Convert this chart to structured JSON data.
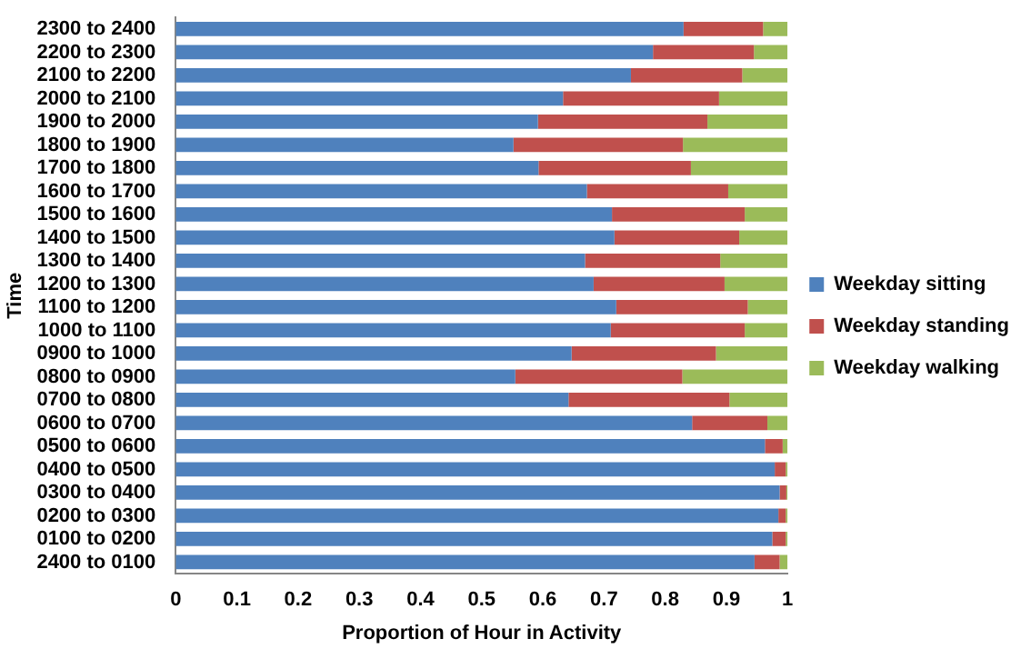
{
  "chart_data": {
    "type": "bar",
    "orientation": "horizontal",
    "stacked": true,
    "xlabel": "Proportion of Hour in Activity",
    "ylabel": "Time",
    "categories": [
      "2300 to 2400",
      "2200 to 2300",
      "2100 to 2200",
      "2000 to 2100",
      "1900 to 2000",
      "1800 to 1900",
      "1700 to 1800",
      "1600 to 1700",
      "1500 to 1600",
      "1400 to 1500",
      "1300 to 1400",
      "1200 to 1300",
      "1100 to 1200",
      "1000 to 1100",
      "0900 to 1000",
      "0800 to 0900",
      "0700 to 0800",
      "0600 to 0700",
      "0500 to 0600",
      "0400 to 0500",
      "0300 to 0400",
      "0200 to 0300",
      "0100 to 0200",
      "2400 to 0100"
    ],
    "series": [
      {
        "name": "Weekday sitting",
        "color": "#4f81bd",
        "values": [
          0.83,
          0.78,
          0.744,
          0.633,
          0.592,
          0.552,
          0.593,
          0.672,
          0.713,
          0.717,
          0.669,
          0.683,
          0.72,
          0.711,
          0.647,
          0.555,
          0.642,
          0.844,
          0.963,
          0.979,
          0.987,
          0.985,
          0.975,
          0.946
        ]
      },
      {
        "name": "Weekday standing",
        "color": "#c0504d",
        "values": [
          0.13,
          0.165,
          0.182,
          0.255,
          0.277,
          0.277,
          0.249,
          0.231,
          0.217,
          0.204,
          0.221,
          0.214,
          0.215,
          0.219,
          0.236,
          0.273,
          0.263,
          0.123,
          0.029,
          0.018,
          0.011,
          0.012,
          0.022,
          0.041
        ]
      },
      {
        "name": "Weekday walking",
        "color": "#9bbb59",
        "values": [
          0.04,
          0.055,
          0.074,
          0.112,
          0.131,
          0.171,
          0.158,
          0.097,
          0.07,
          0.079,
          0.11,
          0.103,
          0.065,
          0.07,
          0.117,
          0.172,
          0.095,
          0.033,
          0.008,
          0.003,
          0.002,
          0.003,
          0.003,
          0.013
        ]
      }
    ],
    "xlim": [
      0,
      1
    ],
    "xticks": [
      0,
      0.1,
      0.2,
      0.3,
      0.4,
      0.5,
      0.6,
      0.7,
      0.8,
      0.9,
      1
    ],
    "grid": false,
    "legend": "right"
  }
}
